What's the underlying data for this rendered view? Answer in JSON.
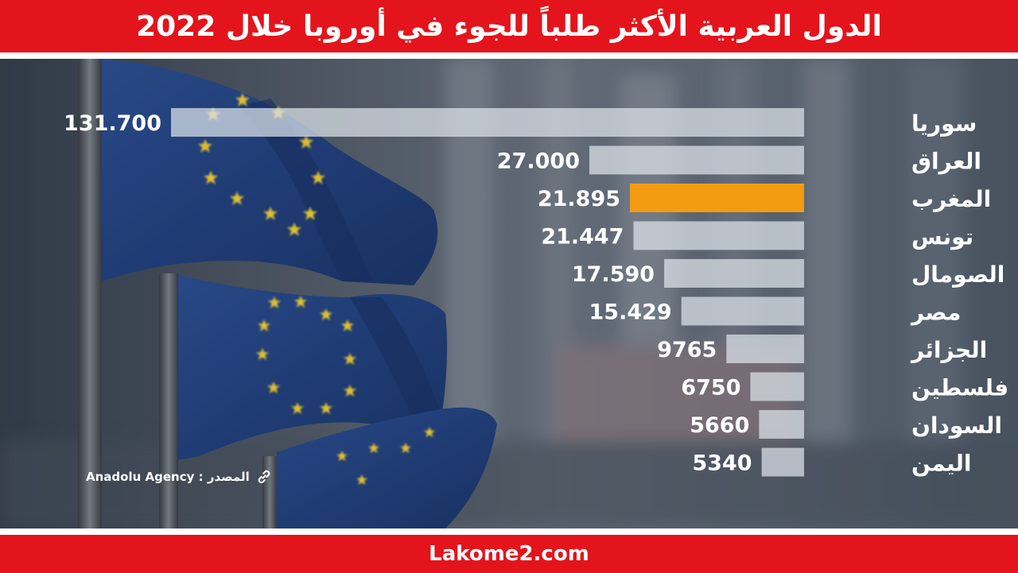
{
  "header": {
    "title": "الدول العربية الأكثر طلباً للجوء في أوروبا خلال 2022"
  },
  "footer": {
    "site": "Lakome2.com"
  },
  "source": {
    "text": "Anadolu Agency : المصدر",
    "icon": "link-icon"
  },
  "colors": {
    "brand_red": "#e3141c",
    "highlight": "#f39c12",
    "bar": "#dde3ea"
  },
  "chart_data": {
    "type": "bar",
    "orientation": "horizontal",
    "categories": [
      "سوريا",
      "العراق",
      "المغرب",
      "تونس",
      "الصومال",
      "مصر",
      "الجزائر",
      "فلسطين",
      "السودان",
      "اليمن"
    ],
    "values": [
      131700,
      27000,
      21895,
      21447,
      17590,
      15429,
      9765,
      6750,
      5660,
      5340
    ],
    "value_labels": [
      "131.700",
      "27.000",
      "21.895",
      "21.447",
      "17.590",
      "15.429",
      "9765",
      "6750",
      "5660",
      "5340"
    ],
    "highlight_index": 2,
    "title": "الدول العربية الأكثر طلباً للجوء في أوروبا خلال 2022",
    "xlabel": "",
    "ylabel": ""
  }
}
